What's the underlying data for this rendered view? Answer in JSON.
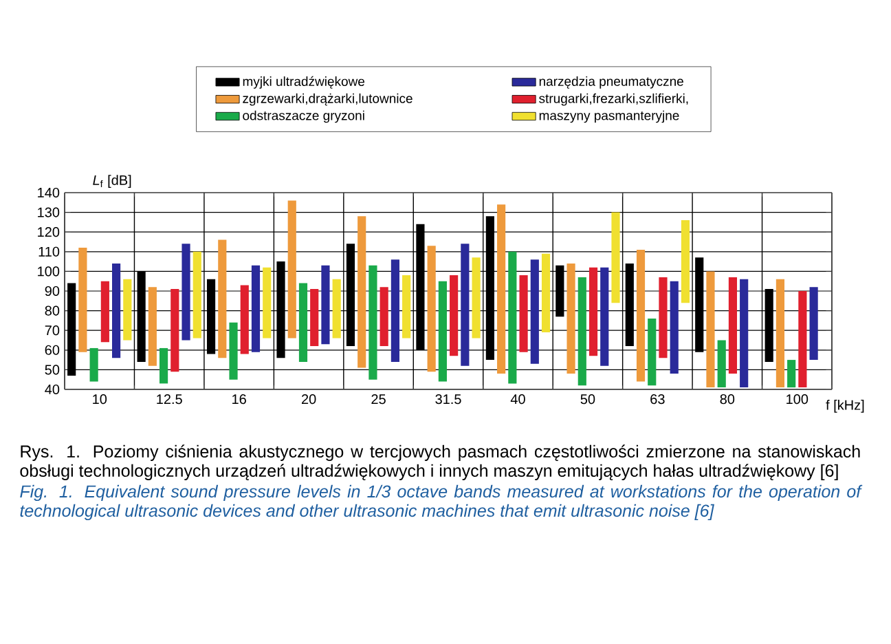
{
  "chart_data": {
    "type": "bar",
    "categories": [
      "10",
      "12.5",
      "16",
      "20",
      "25",
      "31.5",
      "40",
      "50",
      "63",
      "80",
      "100"
    ],
    "series": [
      {
        "name": "myjki ultradźwiękowe",
        "color": "#000000",
        "base": [
          47,
          54,
          58,
          56,
          62,
          60,
          55,
          77,
          62,
          59,
          54
        ],
        "values": [
          47,
          46,
          38,
          49,
          52,
          64,
          73,
          26,
          42,
          48,
          37
        ]
      },
      {
        "name": "zgrzewarki,drążarki,lutownice",
        "color": "#ee9a3c",
        "base": [
          59,
          52,
          56,
          66,
          51,
          49,
          48,
          48,
          44,
          41,
          41
        ],
        "values": [
          53,
          40,
          60,
          70,
          77,
          64,
          86,
          56,
          67,
          59,
          55
        ]
      },
      {
        "name": "odstraszacze  gryzoni",
        "color": "#1aaa4a",
        "base": [
          44,
          43,
          45,
          54,
          45,
          44,
          43,
          42,
          42,
          41,
          41
        ],
        "values": [
          17,
          18,
          29,
          40,
          58,
          51,
          67,
          55,
          34,
          24,
          14
        ]
      },
      {
        "name": "strugarki,frezarki,szlifierki,",
        "color": "#e0202e",
        "base": [
          64,
          49,
          58,
          62,
          62,
          57,
          59,
          57,
          56,
          48,
          41
        ],
        "values": [
          31,
          42,
          35,
          29,
          30,
          41,
          39,
          45,
          41,
          49,
          49
        ]
      },
      {
        "name": "narzędzia pneumatyczne",
        "color": "#2a2a9a",
        "base": [
          56,
          65,
          59,
          63,
          54,
          52,
          53,
          52,
          48,
          41,
          55
        ],
        "values": [
          48,
          49,
          44,
          40,
          52,
          62,
          53,
          50,
          47,
          55,
          37
        ]
      },
      {
        "name": "maszyny pasmanteryjne",
        "color": "#f0e030",
        "base": [
          65,
          66,
          66,
          66,
          66,
          66,
          69,
          84,
          84,
          null,
          null
        ],
        "values": [
          31,
          44,
          36,
          30,
          32,
          41,
          40,
          46,
          42,
          null,
          null
        ]
      }
    ],
    "ylim": [
      40,
      140
    ],
    "yticks": [
      40,
      50,
      60,
      70,
      80,
      90,
      100,
      110,
      120,
      130,
      140
    ],
    "ylabel": "*L*$_{f}$ [dB]",
    "xlabel": "f [kHz]",
    "grid": "y",
    "legend": "top",
    "annotations": [
      "Rys. 1. Poziomy ciśnienia akustycznego w tercjowych pasmach częstotliwości zmierzone na stanowiskach obsługi technologicznych urządzeń ultradźwiękowych i innych maszyn emitujących hałas ultradźwiękowy [6]",
      "Fig. 1. Equivalent sound pressure levels in 1/3 octave bands measured at workstations for the operation of technological ultrasonic devices and other ultrasonic machines that emit ultrasonic noise [6]"
    ]
  }
}
